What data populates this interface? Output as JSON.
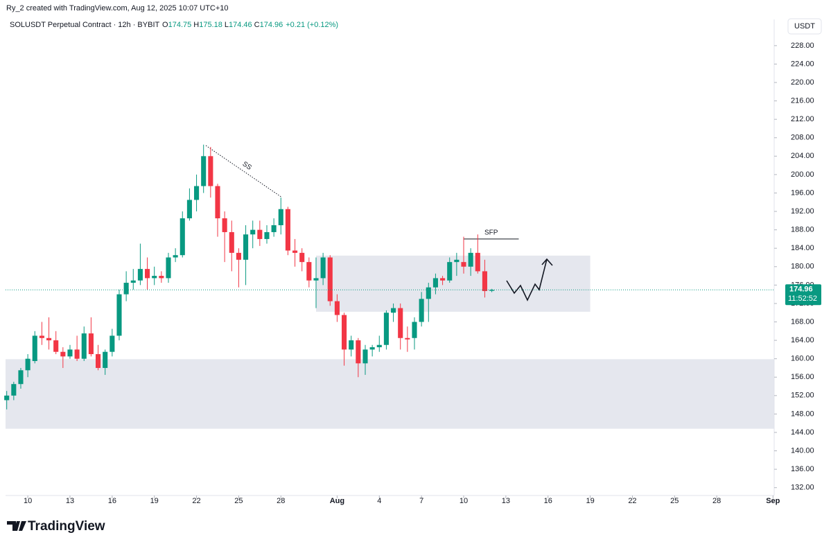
{
  "credit": "Ry_2 created with TradingView.com, Aug 12, 2025 10:07 UTC+10",
  "brand": "TradingView",
  "currency_button": "USDT",
  "chart_data": {
    "type": "candlestick",
    "title": "SOLUSDT Perpetual Contract · 12h · BYBIT",
    "quote": [
      {
        "key": "O",
        "value": "174.75"
      },
      {
        "key": "H",
        "value": "175.18"
      },
      {
        "key": "L",
        "value": "174.46"
      },
      {
        "key": "C",
        "value": "174.96"
      }
    ],
    "change": "+0.21 (+0.12%)",
    "up_color": "#089981",
    "down_color": "#f23645",
    "x": [
      "2025-07-08 12:00",
      "2025-07-09 00:00",
      "2025-07-09 12:00",
      "2025-07-10 00:00",
      "2025-07-10 12:00",
      "2025-07-11 00:00",
      "2025-07-11 12:00",
      "2025-07-12 00:00",
      "2025-07-12 12:00",
      "2025-07-13 00:00",
      "2025-07-13 12:00",
      "2025-07-14 00:00",
      "2025-07-14 12:00",
      "2025-07-15 00:00",
      "2025-07-15 12:00",
      "2025-07-16 00:00",
      "2025-07-16 12:00",
      "2025-07-17 00:00",
      "2025-07-17 12:00",
      "2025-07-18 00:00",
      "2025-07-18 12:00",
      "2025-07-19 00:00",
      "2025-07-19 12:00",
      "2025-07-20 00:00",
      "2025-07-20 12:00",
      "2025-07-21 00:00",
      "2025-07-21 12:00",
      "2025-07-22 00:00",
      "2025-07-22 12:00",
      "2025-07-23 00:00",
      "2025-07-23 12:00",
      "2025-07-24 00:00",
      "2025-07-24 12:00",
      "2025-07-25 00:00",
      "2025-07-25 12:00",
      "2025-07-26 00:00",
      "2025-07-26 12:00",
      "2025-07-27 00:00",
      "2025-07-27 12:00",
      "2025-07-28 00:00",
      "2025-07-28 12:00",
      "2025-07-29 00:00",
      "2025-07-29 12:00",
      "2025-07-30 00:00",
      "2025-07-30 12:00",
      "2025-07-31 00:00",
      "2025-07-31 12:00",
      "2025-08-01 00:00",
      "2025-08-01 12:00",
      "2025-08-02 00:00",
      "2025-08-02 12:00",
      "2025-08-03 00:00",
      "2025-08-03 12:00",
      "2025-08-04 00:00",
      "2025-08-04 12:00",
      "2025-08-05 00:00",
      "2025-08-05 12:00",
      "2025-08-06 00:00",
      "2025-08-06 12:00",
      "2025-08-07 00:00",
      "2025-08-07 12:00",
      "2025-08-08 00:00",
      "2025-08-08 12:00",
      "2025-08-09 00:00",
      "2025-08-09 12:00",
      "2025-08-10 00:00",
      "2025-08-10 12:00",
      "2025-08-11 00:00",
      "2025-08-11 12:00",
      "2025-08-12 00:00"
    ],
    "open": [
      151,
      152,
      154.5,
      157.5,
      159.5,
      165,
      164.5,
      164,
      161.5,
      160.5,
      162,
      160,
      165.5,
      161,
      158,
      161.5,
      165,
      174,
      176.5,
      177,
      179.5,
      177.5,
      178,
      177.5,
      182,
      182.5,
      190.5,
      194.5,
      197.5,
      204,
      197.5,
      190.5,
      187.5,
      183,
      181.5,
      187,
      188,
      186,
      187.5,
      189,
      192.5,
      183.5,
      183,
      181,
      177,
      177.5,
      182,
      172.5,
      169.5,
      162,
      164,
      159,
      162,
      162.5,
      163,
      170,
      171,
      164.5,
      164.5,
      168,
      173,
      175.5,
      177.5,
      177,
      181,
      181,
      180,
      183,
      179,
      174.75
    ],
    "high": [
      153,
      155,
      158,
      161,
      166,
      168,
      169,
      166,
      162.5,
      163,
      165,
      167,
      169,
      163,
      162,
      166.5,
      175,
      179,
      179.5,
      185,
      182,
      180,
      179,
      183,
      184,
      192,
      197,
      200,
      206.5,
      206,
      198,
      192,
      190,
      184,
      189,
      190,
      190,
      189,
      190.5,
      195,
      193,
      186,
      184,
      182,
      182,
      183,
      182.5,
      174,
      170,
      165,
      164.5,
      163,
      163,
      165,
      170.5,
      172,
      172,
      167,
      169,
      174.5,
      176.5,
      178.5,
      178,
      182,
      183,
      186.5,
      184,
      187,
      181.5,
      175.18
    ],
    "low": [
      149,
      151,
      153.5,
      156,
      159,
      163,
      162,
      161,
      158,
      160,
      159.5,
      159.5,
      160.5,
      157.5,
      156.5,
      160.5,
      164,
      172.5,
      175,
      176,
      175,
      176,
      176.5,
      176.5,
      181,
      182,
      190,
      192,
      196,
      195,
      186.5,
      181,
      179,
      175.5,
      176,
      184,
      184.5,
      185,
      186.5,
      187,
      182.5,
      180,
      179,
      175.5,
      171,
      176,
      171.5,
      168,
      158.5,
      160.5,
      156,
      156.5,
      160.5,
      161.5,
      162,
      168,
      162,
      161.5,
      162,
      167,
      168,
      174,
      176,
      176.5,
      178,
      178.5,
      178,
      178.5,
      173.3,
      174.46
    ],
    "close": [
      152,
      154.5,
      157.5,
      160,
      165,
      164.5,
      164,
      161.5,
      160.5,
      162,
      160,
      165.5,
      161,
      158,
      161.5,
      165,
      174,
      176.5,
      177,
      179.5,
      177.5,
      178,
      177.5,
      182,
      182.5,
      190.5,
      194.5,
      197.5,
      204,
      197.5,
      190.5,
      187.5,
      183,
      181.5,
      187,
      188,
      186,
      187.5,
      189,
      192.5,
      183.5,
      183,
      181,
      177,
      177.5,
      182,
      172.5,
      169.5,
      162,
      164,
      159,
      162,
      162.5,
      163,
      170,
      171,
      164.5,
      164.2,
      168,
      173,
      175.5,
      177.5,
      177,
      181,
      181.5,
      180,
      183,
      179,
      174.7,
      174.96
    ],
    "xlim": [
      "2025-07-08 10:00",
      "2025-09-01 02:00"
    ],
    "xticks": [
      {
        "value": "2025-07-10 00:00",
        "label": "10"
      },
      {
        "value": "2025-07-13 00:00",
        "label": "13"
      },
      {
        "value": "2025-07-16 00:00",
        "label": "16"
      },
      {
        "value": "2025-07-19 00:00",
        "label": "19"
      },
      {
        "value": "2025-07-22 00:00",
        "label": "22"
      },
      {
        "value": "2025-07-25 00:00",
        "label": "25"
      },
      {
        "value": "2025-07-28 00:00",
        "label": "28"
      },
      {
        "value": "2025-08-01 00:00",
        "label": "Aug"
      },
      {
        "value": "2025-08-04 00:00",
        "label": "4"
      },
      {
        "value": "2025-08-07 00:00",
        "label": "7"
      },
      {
        "value": "2025-08-10 00:00",
        "label": "10"
      },
      {
        "value": "2025-08-13 00:00",
        "label": "13"
      },
      {
        "value": "2025-08-16 00:00",
        "label": "16"
      },
      {
        "value": "2025-08-19 00:00",
        "label": "19"
      },
      {
        "value": "2025-08-22 00:00",
        "label": "22"
      },
      {
        "value": "2025-08-25 00:00",
        "label": "25"
      },
      {
        "value": "2025-08-28 00:00",
        "label": "28"
      },
      {
        "value": "2025-09-01 00:00",
        "label": "Sep"
      }
    ],
    "ylim": [
      130.3,
      233.7
    ],
    "yticks": [
      {
        "value": 132,
        "label": "132.00"
      },
      {
        "value": 136,
        "label": "136.00"
      },
      {
        "value": 140,
        "label": "140.00"
      },
      {
        "value": 144,
        "label": "144.00"
      },
      {
        "value": 148,
        "label": "148.00"
      },
      {
        "value": 152,
        "label": "152.00"
      },
      {
        "value": 156,
        "label": "156.00"
      },
      {
        "value": 160,
        "label": "160.00"
      },
      {
        "value": 164,
        "label": "164.00"
      },
      {
        "value": 168,
        "label": "168.00"
      },
      {
        "value": 172,
        "label": "172.00"
      },
      {
        "value": 176,
        "label": "176.00"
      },
      {
        "value": 180,
        "label": "180.00"
      },
      {
        "value": 184,
        "label": "184.00"
      },
      {
        "value": 188,
        "label": "188.00"
      },
      {
        "value": 192,
        "label": "192.00"
      },
      {
        "value": 196,
        "label": "196.00"
      },
      {
        "value": 200,
        "label": "200.00"
      },
      {
        "value": 204,
        "label": "204.00"
      },
      {
        "value": 208,
        "label": "208.00"
      },
      {
        "value": 212,
        "label": "212.00"
      },
      {
        "value": 216,
        "label": "216.00"
      },
      {
        "value": 220,
        "label": "220.00"
      },
      {
        "value": 224,
        "label": "224.00"
      },
      {
        "value": 228,
        "label": "228.00"
      }
    ],
    "last_price": {
      "value": 174.96,
      "label": "174.96"
    },
    "countdown": "11:52:52",
    "zones": [
      {
        "x0": "2025-07-30 12:00",
        "x1": "2025-08-19 00:00",
        "y0": 170.2,
        "y1": 182.4
      },
      {
        "x0": "2025-07-08 10:00",
        "x1": "2025-09-01 02:00",
        "y0": 144.8,
        "y1": 159.9
      }
    ],
    "annotations": [
      {
        "text": "SS",
        "x0": "2025-07-22 16:00",
        "y0": 206.3,
        "x1": "2025-07-28 00:00",
        "y1": 195.2
      },
      {
        "text": "SFP",
        "x0": "2025-08-10 00:00",
        "y0": 186.0,
        "x1": "2025-08-13 22:00",
        "y1": 186.0
      }
    ]
  }
}
